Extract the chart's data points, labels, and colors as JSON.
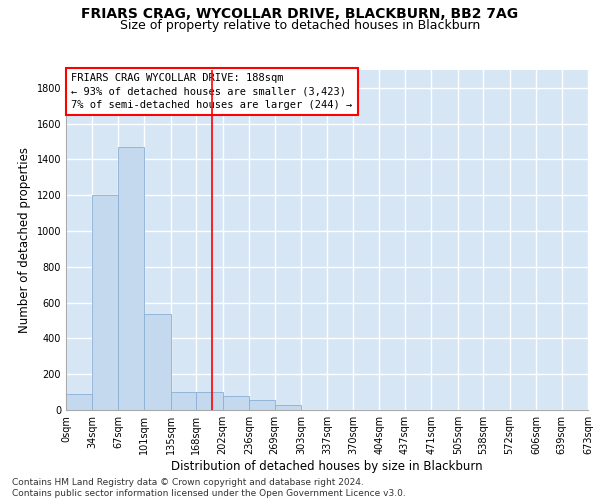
{
  "title_line1": "FRIARS CRAG, WYCOLLAR DRIVE, BLACKBURN, BB2 7AG",
  "title_line2": "Size of property relative to detached houses in Blackburn",
  "xlabel": "Distribution of detached houses by size in Blackburn",
  "ylabel": "Number of detached properties",
  "footnote": "Contains HM Land Registry data © Crown copyright and database right 2024.\nContains public sector information licensed under the Open Government Licence v3.0.",
  "annotation_line1": "FRIARS CRAG WYCOLLAR DRIVE: 188sqm",
  "annotation_line2": "← 93% of detached houses are smaller (3,423)",
  "annotation_line3": "7% of semi-detached houses are larger (244) →",
  "bar_color": "#c5d9ee",
  "bar_edge_color": "#8aafd4",
  "ref_line_color": "red",
  "ref_line_x": 188,
  "bin_edges": [
    0,
    34,
    67,
    101,
    135,
    168,
    202,
    236,
    269,
    303,
    337,
    370,
    404,
    437,
    471,
    505,
    538,
    572,
    606,
    639,
    673
  ],
  "bar_heights": [
    90,
    1200,
    1470,
    535,
    100,
    100,
    80,
    55,
    30,
    0,
    0,
    0,
    0,
    0,
    0,
    0,
    0,
    0,
    0,
    0
  ],
  "ylim": [
    0,
    1900
  ],
  "yticks": [
    0,
    200,
    400,
    600,
    800,
    1000,
    1200,
    1400,
    1600,
    1800
  ],
  "plot_bg_color": "#d6e6f5",
  "grid_color": "white",
  "title_fontsize": 10,
  "subtitle_fontsize": 9,
  "axis_label_fontsize": 8.5,
  "tick_fontsize": 7,
  "annotation_fontsize": 7.5,
  "footnote_fontsize": 6.5
}
